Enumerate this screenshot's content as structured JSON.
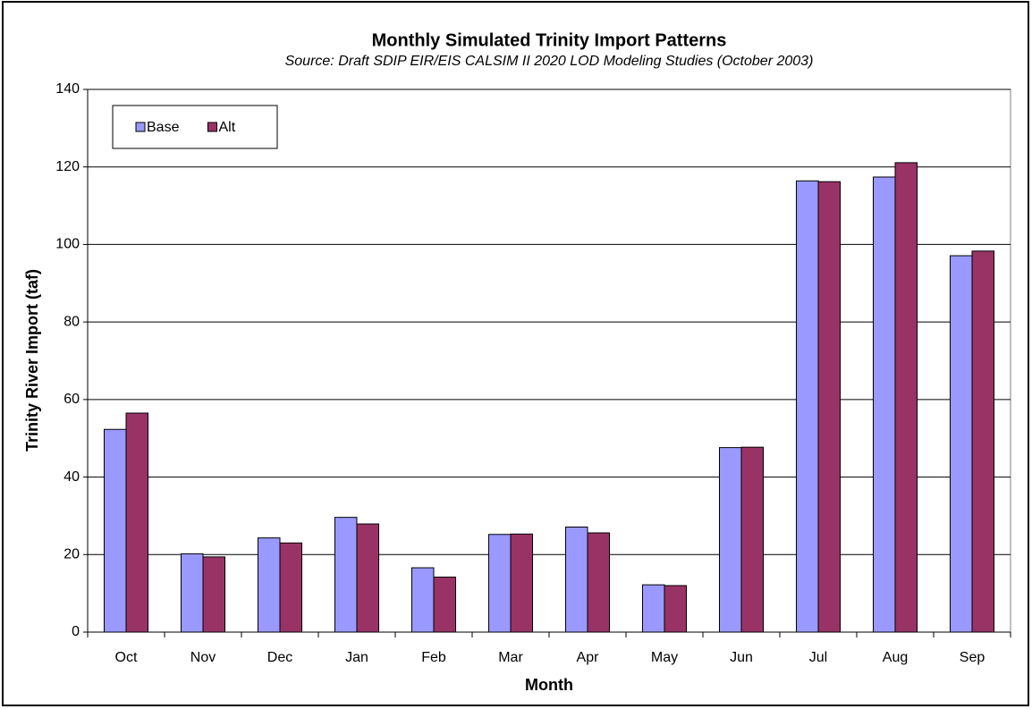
{
  "chart_data": {
    "type": "bar",
    "title": "Monthly Simulated Trinity Import Patterns",
    "subtitle": "Source: Draft SDIP EIR/EIS CALSIM II 2020 LOD Modeling Studies (October 2003)",
    "x_label": "Month",
    "y_label": "Trinity River Import (taf)",
    "categories": [
      "Oct",
      "Nov",
      "Dec",
      "Jan",
      "Feb",
      "Mar",
      "Apr",
      "May",
      "Jun",
      "Jul",
      "Aug",
      "Sep"
    ],
    "series": [
      {
        "name": "Base",
        "color": "#9999ff",
        "values": [
          52.3,
          20.2,
          24.3,
          29.6,
          16.6,
          25.2,
          27.1,
          12.2,
          47.6,
          116.4,
          117.4,
          97.1
        ]
      },
      {
        "name": "Alt",
        "color": "#993366",
        "values": [
          56.5,
          19.4,
          23.0,
          27.9,
          14.2,
          25.3,
          25.6,
          12.0,
          47.7,
          116.2,
          121.1,
          98.3
        ]
      }
    ],
    "ylim": [
      0,
      140
    ],
    "yticks": [
      0,
      20,
      40,
      60,
      80,
      100,
      120,
      140
    ],
    "grid": true,
    "legend": "top-left"
  }
}
